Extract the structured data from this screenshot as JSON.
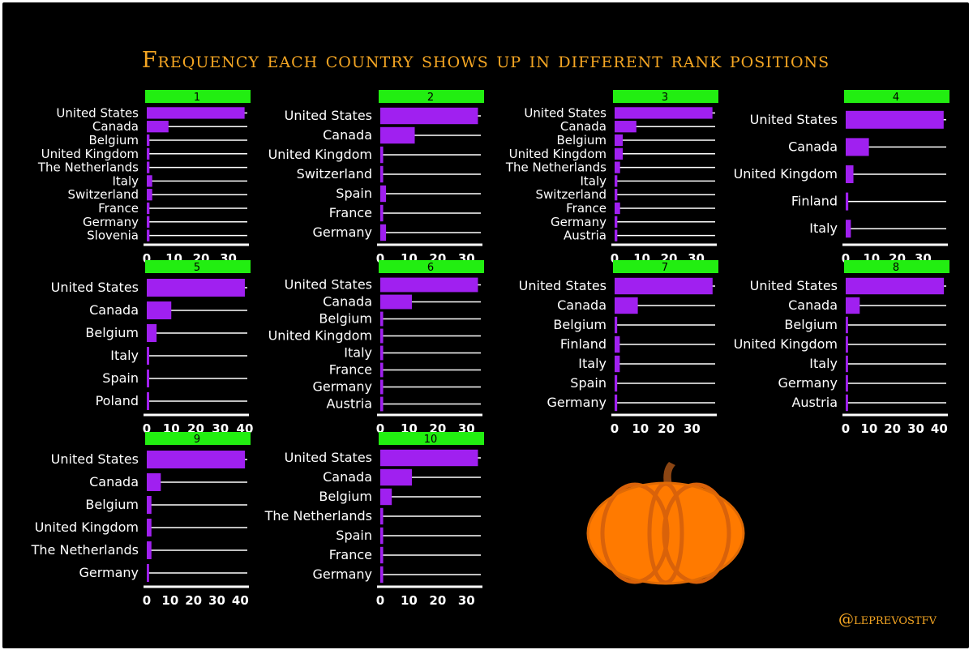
{
  "title": "Frequency each country shows up in different rank positions",
  "credit": "@leprevostfv",
  "colors": {
    "background": "#000000",
    "bar": "#a020f0",
    "header": "#22ee11",
    "gridline": "#ffffff",
    "text": "#ffffff",
    "title": "#f5a623",
    "pumpkin": "#ff7a00",
    "pumpkin_dark": "#d9620a",
    "stem": "#8b4513"
  },
  "decoration": "pumpkin-icon",
  "chart_data": [
    {
      "type": "bar",
      "orientation": "horizontal",
      "title": "1",
      "categories": [
        "United States",
        "Canada",
        "Belgium",
        "United Kingdom",
        "The Netherlands",
        "Italy",
        "Switzerland",
        "France",
        "Germany",
        "Slovenia"
      ],
      "values": [
        36,
        8,
        1,
        1,
        1,
        2,
        2,
        1,
        1,
        1
      ],
      "xticks": [
        0,
        10,
        20,
        30
      ],
      "xlim": [
        0,
        37
      ]
    },
    {
      "type": "bar",
      "orientation": "horizontal",
      "title": "2",
      "categories": [
        "United States",
        "Canada",
        "United Kingdom",
        "Switzerland",
        "Spain",
        "France",
        "Germany"
      ],
      "values": [
        34,
        12,
        1,
        1,
        2,
        1,
        2
      ],
      "xticks": [
        0,
        10,
        20,
        30
      ],
      "xlim": [
        0,
        35
      ]
    },
    {
      "type": "bar",
      "orientation": "horizontal",
      "title": "3",
      "categories": [
        "United States",
        "Canada",
        "Belgium",
        "United Kingdom",
        "The Netherlands",
        "Italy",
        "Switzerland",
        "France",
        "Germany",
        "Austria"
      ],
      "values": [
        36,
        8,
        3,
        3,
        2,
        1,
        1,
        2,
        1,
        1
      ],
      "xticks": [
        0,
        10,
        20,
        30
      ],
      "xlim": [
        0,
        37
      ]
    },
    {
      "type": "bar",
      "orientation": "horizontal",
      "title": "4",
      "categories": [
        "United States",
        "Canada",
        "United Kingdom",
        "Finland",
        "Italy"
      ],
      "values": [
        38,
        9,
        3,
        1,
        2
      ],
      "xticks": [
        0,
        10,
        20,
        30
      ],
      "xlim": [
        0,
        39
      ]
    },
    {
      "type": "bar",
      "orientation": "horizontal",
      "title": "5",
      "categories": [
        "United States",
        "Canada",
        "Belgium",
        "Italy",
        "Spain",
        "Poland"
      ],
      "values": [
        40,
        10,
        4,
        1,
        1,
        1
      ],
      "xticks": [
        0,
        10,
        20,
        30,
        40
      ],
      "xlim": [
        0,
        41
      ]
    },
    {
      "type": "bar",
      "orientation": "horizontal",
      "title": "6",
      "categories": [
        "United States",
        "Canada",
        "Belgium",
        "United Kingdom",
        "Italy",
        "France",
        "Germany",
        "Austria"
      ],
      "values": [
        34,
        11,
        1,
        1,
        1,
        1,
        1,
        1
      ],
      "xticks": [
        0,
        10,
        20,
        30
      ],
      "xlim": [
        0,
        35
      ]
    },
    {
      "type": "bar",
      "orientation": "horizontal",
      "title": "7",
      "categories": [
        "United States",
        "Canada",
        "Belgium",
        "Finland",
        "Italy",
        "Spain",
        "Germany"
      ],
      "values": [
        38,
        9,
        1,
        2,
        2,
        1,
        1
      ],
      "xticks": [
        0,
        10,
        20,
        30
      ],
      "xlim": [
        0,
        39
      ]
    },
    {
      "type": "bar",
      "orientation": "horizontal",
      "title": "8",
      "categories": [
        "United States",
        "Canada",
        "Belgium",
        "United Kingdom",
        "Italy",
        "Germany",
        "Austria"
      ],
      "values": [
        42,
        6,
        1,
        1,
        1,
        1,
        1
      ],
      "xticks": [
        0,
        10,
        20,
        30,
        40
      ],
      "xlim": [
        0,
        43
      ]
    },
    {
      "type": "bar",
      "orientation": "horizontal",
      "title": "9",
      "categories": [
        "United States",
        "Canada",
        "Belgium",
        "United Kingdom",
        "The Netherlands",
        "Germany"
      ],
      "values": [
        42,
        6,
        2,
        2,
        2,
        1
      ],
      "xticks": [
        0,
        10,
        20,
        30,
        40
      ],
      "xlim": [
        0,
        43
      ]
    },
    {
      "type": "bar",
      "orientation": "horizontal",
      "title": "10",
      "categories": [
        "United States",
        "Canada",
        "Belgium",
        "The Netherlands",
        "Spain",
        "France",
        "Germany"
      ],
      "values": [
        34,
        11,
        4,
        1,
        1,
        1,
        1
      ],
      "xticks": [
        0,
        10,
        20,
        30
      ],
      "xlim": [
        0,
        35
      ]
    }
  ]
}
